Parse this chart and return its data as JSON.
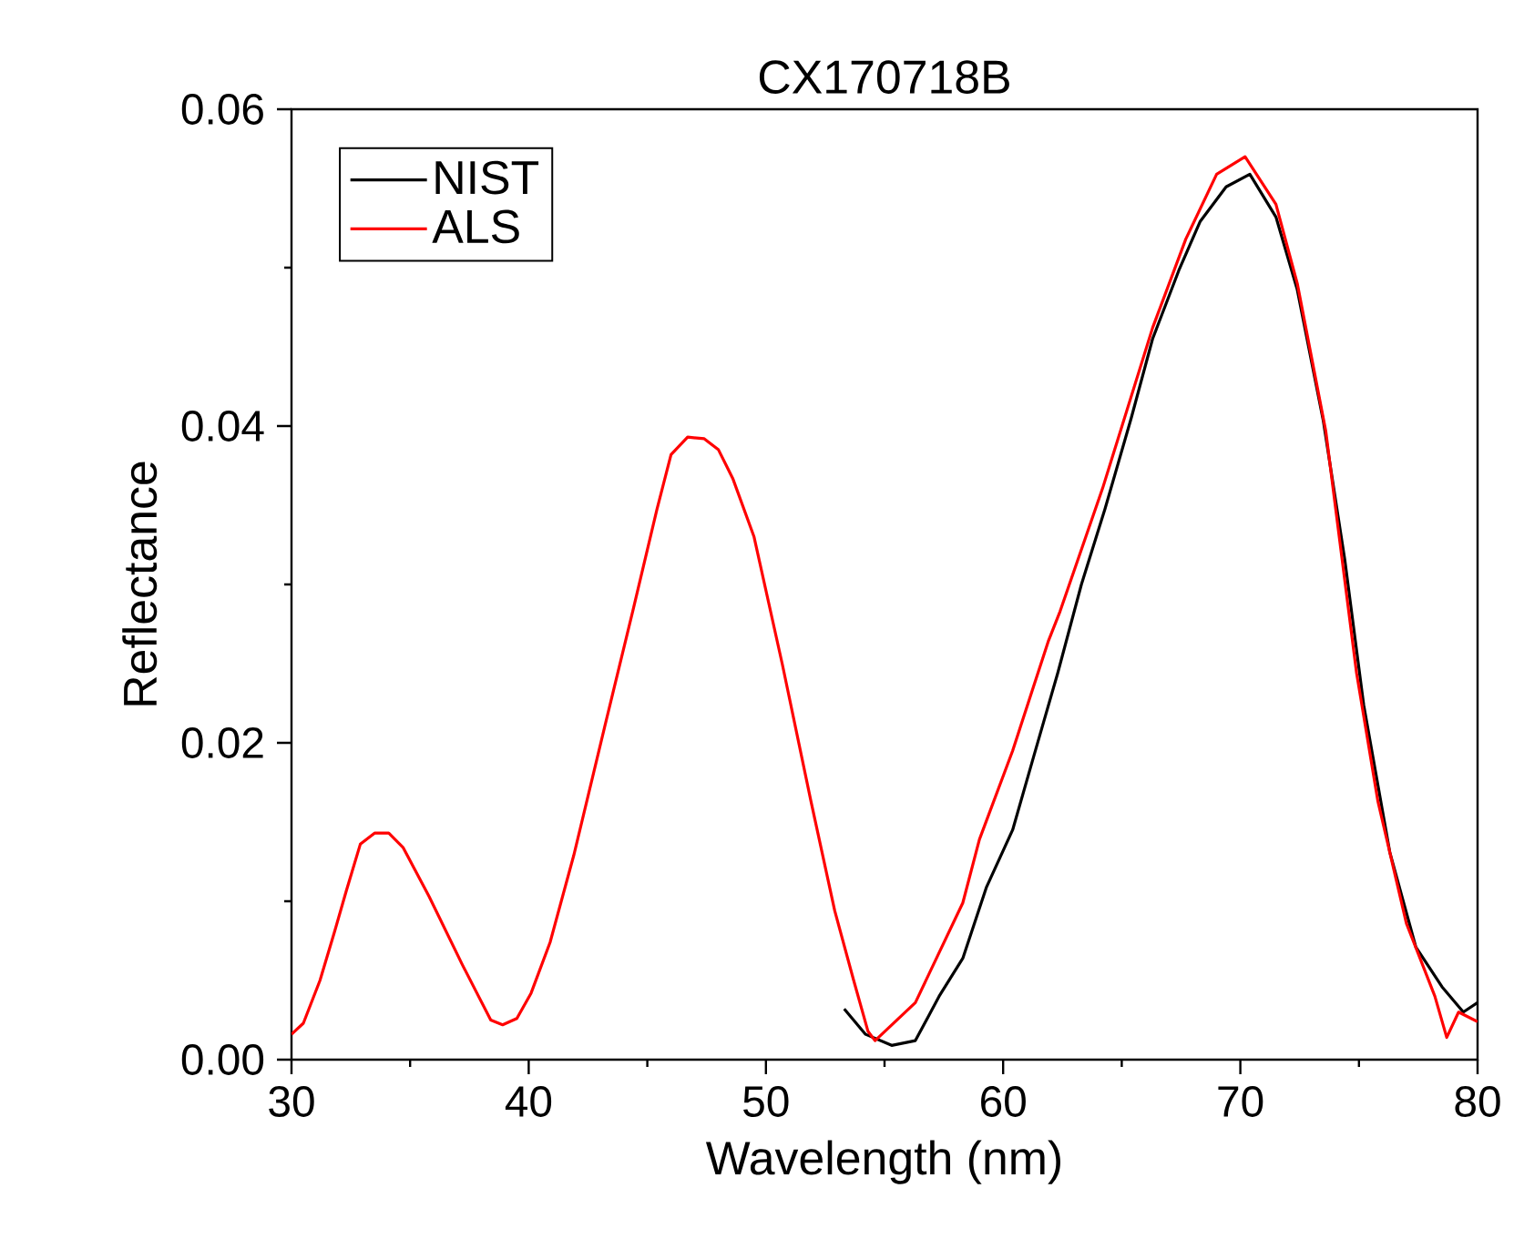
{
  "chart_data": {
    "type": "line",
    "title": "CX170718B",
    "xlabel": "Wavelength (nm)",
    "ylabel": "Reflectance",
    "xlim": [
      30,
      80
    ],
    "ylim": [
      0,
      0.06
    ],
    "xticks": [
      30,
      40,
      50,
      60,
      70,
      80
    ],
    "yticks": [
      {
        "value": 0,
        "label": "0.00"
      },
      {
        "value": 0.02,
        "label": "0.02"
      },
      {
        "value": 0.04,
        "label": "0.04"
      },
      {
        "value": 0.06,
        "label": "0.06"
      }
    ],
    "legend": "top left",
    "series": [
      {
        "name": "NIST",
        "color": "#000000",
        "x": [
          53.3,
          54.2,
          55.3,
          56.3,
          57.3,
          58.3,
          59.3,
          60.4,
          61.3,
          62.3,
          63.3,
          64.3,
          65.4,
          66.3,
          67.4,
          68.3,
          69.4,
          70.4,
          71.5,
          72.4,
          73.5,
          74.4,
          75.2,
          76.3,
          77.4,
          78.5,
          79.4,
          80
        ],
        "values": [
          0.0032,
          0.0016,
          0.0009,
          0.0012,
          0.004,
          0.0064,
          0.0109,
          0.0145,
          0.0192,
          0.0244,
          0.03,
          0.0348,
          0.0405,
          0.0455,
          0.0498,
          0.0529,
          0.0551,
          0.0559,
          0.0532,
          0.0486,
          0.0403,
          0.0316,
          0.0224,
          0.0131,
          0.0071,
          0.0046,
          0.003,
          0.0036
        ]
      },
      {
        "name": "ALS",
        "color": "#ff0000",
        "x": [
          30,
          30.5,
          31.2,
          31.8,
          32.3,
          32.9,
          33.5,
          34.1,
          34.7,
          35.8,
          37.2,
          38.4,
          38.9,
          39.5,
          40.1,
          40.9,
          41.9,
          43.2,
          44.4,
          45.4,
          46.0,
          46.7,
          47.4,
          48.0,
          48.6,
          49.5,
          50.7,
          51.9,
          52.9,
          53.7,
          54.3,
          54.6,
          56.3,
          58.3,
          59.0,
          60.4,
          61.9,
          62.4,
          64.2,
          66.3,
          67.7,
          69.0,
          70.2,
          71.5,
          72.4,
          73.6,
          74.9,
          75.8,
          77.0,
          78.2,
          78.7,
          79.2,
          80
        ],
        "values": [
          0.0016,
          0.0023,
          0.005,
          0.008,
          0.0106,
          0.0136,
          0.0143,
          0.0143,
          0.0134,
          0.0103,
          0.006,
          0.0025,
          0.0022,
          0.0026,
          0.0042,
          0.0074,
          0.0129,
          0.021,
          0.0284,
          0.0347,
          0.0382,
          0.0393,
          0.0392,
          0.0385,
          0.0367,
          0.033,
          0.0249,
          0.0163,
          0.0094,
          0.005,
          0.0018,
          0.0012,
          0.0036,
          0.0099,
          0.0139,
          0.0195,
          0.0264,
          0.0283,
          0.0361,
          0.0462,
          0.0518,
          0.0559,
          0.057,
          0.054,
          0.049,
          0.0397,
          0.0244,
          0.0163,
          0.0086,
          0.004,
          0.0014,
          0.003,
          0.0024
        ]
      }
    ]
  }
}
